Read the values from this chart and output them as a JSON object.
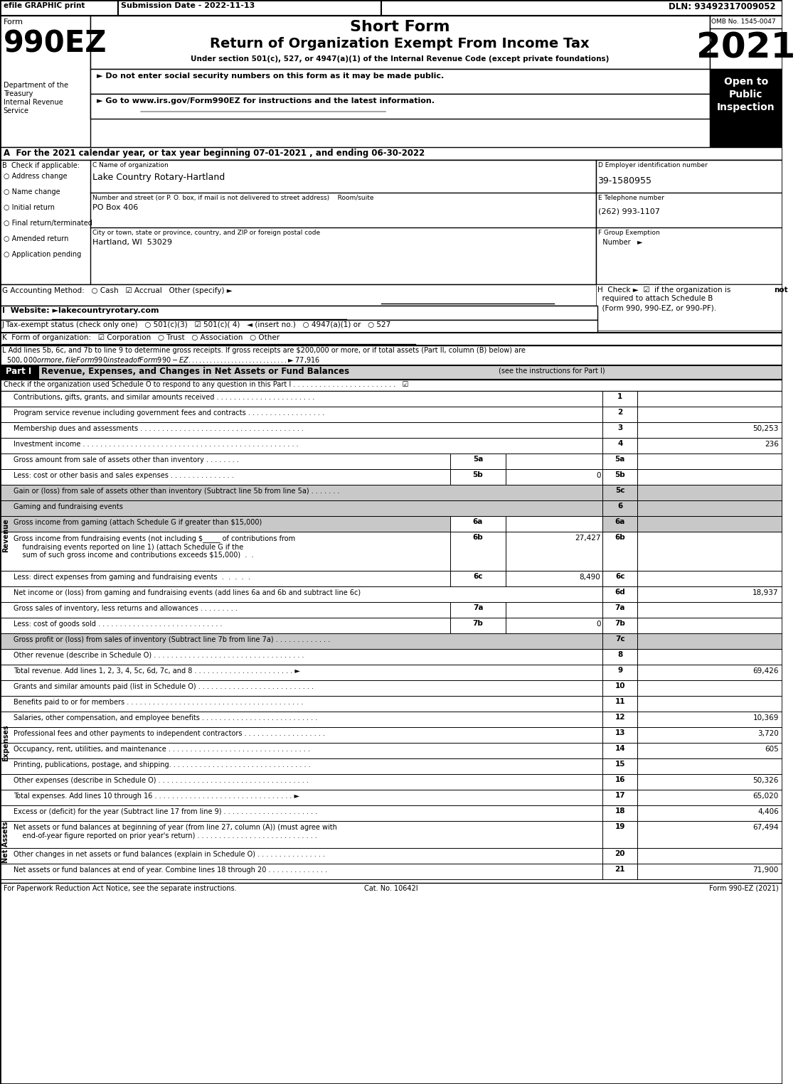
{
  "efile_text": "efile GRAPHIC print",
  "submission_date": "Submission Date - 2022-11-13",
  "dln": "DLN: 93492317009052",
  "form_number": "990EZ",
  "form_label": "Form",
  "short_form": "Short Form",
  "return_title": "Return of Organization Exempt From Income Tax",
  "under_section": "Under section 501(c), 527, or 4947(a)(1) of the Internal Revenue Code (except private foundations)",
  "year": "2021",
  "omb": "OMB No. 1545-0047",
  "open_to": "Open to\nPublic\nInspection",
  "dept1": "Department of the",
  "dept2": "Treasury",
  "dept3": "Internal Revenue",
  "dept4": "Service",
  "bullet1": "► Do not enter social security numbers on this form as it may be made public.",
  "bullet2": "► Go to www.irs.gov/Form990EZ for instructions and the latest information.",
  "www_text": "www.irs.gov/Form990EZ",
  "section_a": "A  For the 2021 calendar year, or tax year beginning 07-01-2021 , and ending 06-30-2022",
  "section_b": "B  Check if applicable:",
  "check_b1": "○ Address change",
  "check_b2": "○ Name change",
  "check_b3": "○ Initial return",
  "check_b4": "○ Final return/terminated",
  "check_b5": "○ Amended return",
  "check_b6": "○ Application pending",
  "section_c_label": "C Name of organization",
  "section_c_value": "Lake Country Rotary-Hartland",
  "address_label": "Number and street (or P. O. box, if mail is not delivered to street address)    Room/suite",
  "address_value": "PO Box 406",
  "city_label": "City or town, state or province, country, and ZIP or foreign postal code",
  "city_value": "Hartland, WI  53029",
  "section_d_label": "D Employer identification number",
  "section_d_value": "39-1580955",
  "section_e_label": "E Telephone number",
  "section_e_value": "(262) 993-1107",
  "section_f_label": "F Group Exemption\n  Number   ►",
  "section_g": "G Accounting Method:   ○ Cash   ☑ Accrual   Other (specify) ►",
  "section_h": "H  Check ►  ☑  if the organization is not\n    required to attach Schedule B\n    (Form 990, 990-EZ, or 990-PF).",
  "section_i": "I  Website: ►lakecountryrotary.com",
  "section_j": "J Tax-exempt status (check only one)   ○ 501(c)(3)   ☑ 501(c)( 4)   ◄ (insert no.)   ○ 4947(a)(1) or   ○ 527",
  "section_k": "K  Form of organization:   ☑ Corporation   ○ Trust   ○ Association   ○ Other",
  "section_l": "L Add lines 5b, 6c, and 7b to line 9 to determine gross receipts. If gross receipts are $200,000 or more, or if total assets (Part II, column (B) below) are\n  $500,000 or more, file Form 990 instead of Form 990-EZ . . . . . . . . . . . . . . . . . . . . . . . . . . . .  ► $ 77,916",
  "part1_header": "Part I",
  "part1_title": "Revenue, Expenses, and Changes in Net Assets or Fund Balances",
  "part1_subtitle": "(see the instructions for Part I)",
  "part1_check": "Check if the organization used Schedule O to respond to any question in this Part I . . . . . . . . . . . . . . . . . . . . . . . .   ☑",
  "revenue_label": "Revenue",
  "expenses_label": "Expenses",
  "net_assets_label": "Net Assets",
  "lines": [
    {
      "num": "1",
      "text": "Contributions, gifts, grants, and similar amounts received . . . . . . . . . . . . . . . . . . . . . . .",
      "value": ""
    },
    {
      "num": "2",
      "text": "Program service revenue including government fees and contracts . . . . . . . . . . . . . . . . . .",
      "value": ""
    },
    {
      "num": "3",
      "text": "Membership dues and assessments . . . . . . . . . . . . . . . . . . . . . . . . . . . . . . . . . . . . . .",
      "value": "50,253"
    },
    {
      "num": "4",
      "text": "Investment income . . . . . . . . . . . . . . . . . . . . . . . . . . . . . . . . . . . . . . . . . . . . . . . . . .",
      "value": "236"
    },
    {
      "num": "5a",
      "text": "Gross amount from sale of assets other than inventory . . . . . . . .",
      "sub_num": "5a",
      "sub_value": "",
      "value": "",
      "is_sub": true
    },
    {
      "num": "5b",
      "text": "Less: cost or other basis and sales expenses . . . . . . . . . . . . . . .",
      "sub_num": "5b",
      "sub_value": "0",
      "value": "",
      "is_sub": true
    },
    {
      "num": "5c",
      "text": "Gain or (loss) from sale of assets other than inventory (Subtract line 5b from line 5a) . . . . . . .",
      "value": "",
      "is_5c": true
    },
    {
      "num": "6",
      "text": "Gaming and fundraising events",
      "value": "",
      "is_header": true
    },
    {
      "num": "6a",
      "text": "Gross income from gaming (attach Schedule G if greater than $15,000)",
      "sub_num": "6a",
      "sub_value": "",
      "value": "",
      "is_sub2": true
    },
    {
      "num": "6b",
      "text": "Gross income from fundraising events (not including $_____ of contributions from\n    fundraising events reported on line 1) (attach Schedule G if the\n    sum of such gross income and contributions exceeds $15,000)  .  .",
      "sub_num": "6b",
      "sub_value": "27,427",
      "value": "",
      "is_sub2": true
    },
    {
      "num": "6c",
      "text": "Less: direct expenses from gaming and fundraising events  .  .  .  .  .",
      "sub_num": "6c",
      "sub_value": "8,490",
      "value": "",
      "is_sub2": true
    },
    {
      "num": "6d",
      "text": "Net income or (loss) from gaming and fundraising events (add lines 6a and 6b and subtract line 6c)",
      "value": "18,937"
    },
    {
      "num": "7a",
      "text": "Gross sales of inventory, less returns and allowances . . . . . . . . .",
      "sub_num": "7a",
      "sub_value": "",
      "value": "",
      "is_sub": true
    },
    {
      "num": "7b",
      "text": "Less: cost of goods sold . . . . . . . . . . . . . . . . . . . . . . . . . . . . .",
      "sub_num": "7b",
      "sub_value": "0",
      "value": "",
      "is_sub": true
    },
    {
      "num": "7c",
      "text": "Gross profit or (loss) from sales of inventory (Subtract line 7b from line 7a) . . . . . . . . . . . . .",
      "value": "",
      "is_5c": true
    },
    {
      "num": "8",
      "text": "Other revenue (describe in Schedule O) . . . . . . . . . . . . . . . . . . . . . . . . . . . . . . . . . . .",
      "value": ""
    },
    {
      "num": "9",
      "text": "Total revenue. Add lines 1, 2, 3, 4, 5c, 6d, 7c, and 8 . . . . . . . . . . . . . . . . . . . . . . . ►",
      "value": "69,426",
      "is_total": true
    }
  ],
  "expense_lines": [
    {
      "num": "10",
      "text": "Grants and similar amounts paid (list in Schedule O) . . . . . . . . . . . . . . . . . . . . . . . . . . .",
      "value": ""
    },
    {
      "num": "11",
      "text": "Benefits paid to or for members . . . . . . . . . . . . . . . . . . . . . . . . . . . . . . . . . . . . . . . . .",
      "value": ""
    },
    {
      "num": "12",
      "text": "Salaries, other compensation, and employee benefits . . . . . . . . . . . . . . . . . . . . . . . . . . .",
      "value": "10,369"
    },
    {
      "num": "13",
      "text": "Professional fees and other payments to independent contractors . . . . . . . . . . . . . . . . . . .",
      "value": "3,720"
    },
    {
      "num": "14",
      "text": "Occupancy, rent, utilities, and maintenance . . . . . . . . . . . . . . . . . . . . . . . . . . . . . . . . .",
      "value": "605"
    },
    {
      "num": "15",
      "text": "Printing, publications, postage, and shipping. . . . . . . . . . . . . . . . . . . . . . . . . . . . . . . . .",
      "value": ""
    },
    {
      "num": "16",
      "text": "Other expenses (describe in Schedule O) . . . . . . . . . . . . . . . . . . . . . . . . . . . . . . . . . . .",
      "value": "50,326"
    },
    {
      "num": "17",
      "text": "Total expenses. Add lines 10 through 16 . . . . . . . . . . . . . . . . . . . . . . . . . . . . . . . . ►",
      "value": "65,020",
      "is_total": true
    }
  ],
  "asset_lines": [
    {
      "num": "18",
      "text": "Excess or (deficit) for the year (Subtract line 17 from line 9) . . . . . . . . . . . . . . . . . . . . . .",
      "value": "4,406"
    },
    {
      "num": "19",
      "text": "Net assets or fund balances at beginning of year (from line 27, column (A)) (must agree with\n    end-of-year figure reported on prior year's return) . . . . . . . . . . . . . . . . . . . . . . . . . . . .",
      "value": "67,494"
    },
    {
      "num": "20",
      "text": "Other changes in net assets or fund balances (explain in Schedule O) . . . . . . . . . . . . . . . .",
      "value": ""
    },
    {
      "num": "21",
      "text": "Net assets or fund balances at end of year. Combine lines 18 through 20 . . . . . . . . . . . . . .",
      "value": "71,900"
    }
  ],
  "footer_left": "For Paperwork Reduction Act Notice, see the separate instructions.",
  "footer_cat": "Cat. No. 10642I",
  "footer_right": "Form 990-EZ (2021)"
}
